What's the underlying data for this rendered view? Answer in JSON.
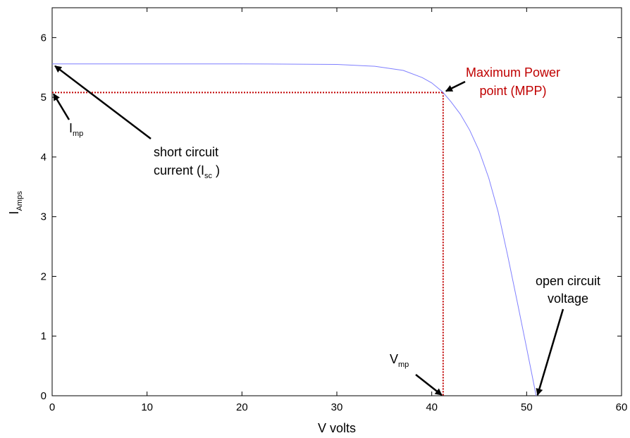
{
  "chart_data": {
    "type": "line",
    "xlabel": "V volts",
    "ylabel": {
      "main": "I",
      "sub": "Amps"
    },
    "xlim": [
      0,
      60
    ],
    "ylim": [
      0,
      6.5
    ],
    "xticks": [
      0,
      10,
      20,
      30,
      40,
      50,
      60
    ],
    "yticks": [
      0,
      1,
      2,
      3,
      4,
      5,
      6
    ],
    "grid": false,
    "curve_color": "#7f7fff",
    "marker_color": "#c00000",
    "series": [
      {
        "x": [
          0,
          10,
          20,
          30,
          34,
          37,
          39,
          40,
          41,
          41.2,
          42,
          43,
          44,
          45,
          46,
          47,
          48,
          49,
          50,
          50.5,
          51
        ],
        "y": [
          5.56,
          5.56,
          5.56,
          5.55,
          5.52,
          5.45,
          5.33,
          5.24,
          5.11,
          5.08,
          4.93,
          4.72,
          4.45,
          4.1,
          3.65,
          3.08,
          2.35,
          1.58,
          0.8,
          0.4,
          0.0
        ]
      }
    ],
    "mpp": {
      "v": 41.2,
      "i": 5.08
    },
    "isc": 5.56,
    "voc": 51,
    "annotations": {
      "mpp_line1": "Maximum Power",
      "mpp_line2": "point (MPP)",
      "isc_line1": "short circuit",
      "isc_line2_pre": "current (I",
      "isc_line2_sub": "sc",
      "isc_line2_post": " )",
      "imp_main": "I",
      "imp_sub": "mp",
      "vmp_main": "V",
      "vmp_sub": "mp",
      "voc_line1": "open circuit",
      "voc_line2": "voltage"
    }
  }
}
